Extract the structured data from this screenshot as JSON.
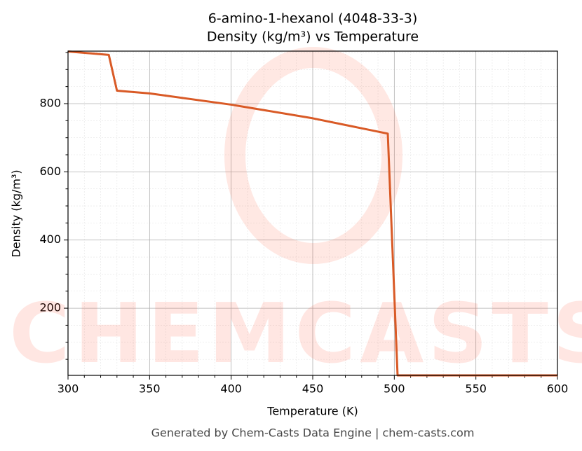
{
  "chart_data": {
    "type": "line",
    "title": "6-amino-1-hexanol (4048-33-3)",
    "subtitle": "Density (kg/m³) vs Temperature",
    "x_label": "Temperature (K)",
    "y_label": "Density (kg/m³)",
    "footer": "Generated by Chem-Casts Data Engine | chem-casts.com",
    "watermark": "CHEMCASTS",
    "x": [
      300,
      325,
      330,
      350,
      400,
      450,
      496,
      502,
      600
    ],
    "series": [
      {
        "name": "Density",
        "color": "#d95a26",
        "values": [
          953,
          943,
          838,
          830,
          797,
          757,
          712,
          3,
          3
        ]
      }
    ],
    "xlim": [
      300,
      600
    ],
    "ylim": [
      3,
      954
    ],
    "xticks": [
      300,
      350,
      400,
      450,
      500,
      550,
      600
    ],
    "yticks": [
      200,
      400,
      600,
      800
    ],
    "xticks_minor": [
      310,
      320,
      330,
      340,
      360,
      370,
      380,
      390,
      410,
      420,
      430,
      440,
      460,
      470,
      480,
      490,
      510,
      520,
      530,
      540,
      560,
      570,
      580,
      590
    ],
    "yticks_minor": [
      50,
      100,
      150,
      250,
      300,
      350,
      450,
      500,
      550,
      650,
      700,
      750,
      850,
      900,
      950
    ],
    "grid": true
  }
}
